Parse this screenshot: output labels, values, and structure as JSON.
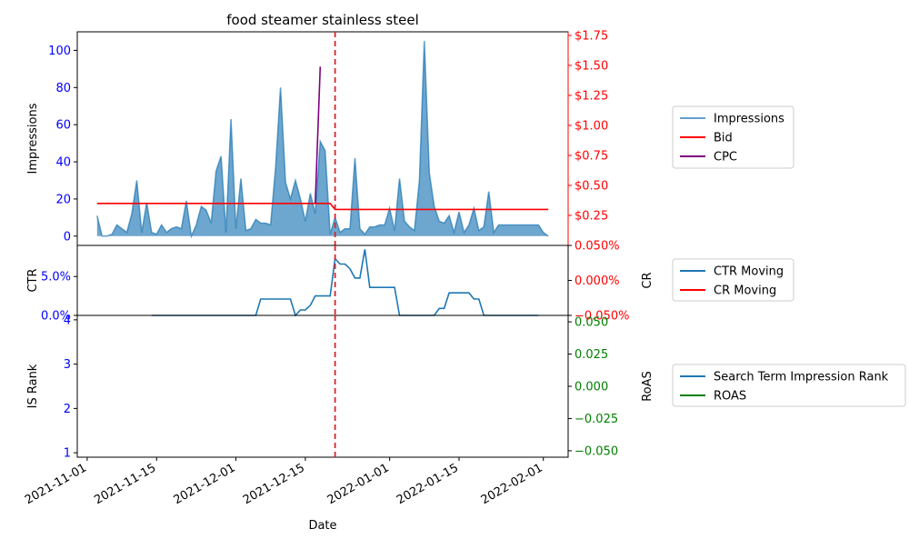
{
  "chart_data": {
    "type": "line",
    "title": "food steamer stainless steel",
    "x_axis": {
      "label": "Date",
      "range": [
        "2021-10-30",
        "2022-02-06"
      ],
      "ticks": [
        "2021-11-01",
        "2021-11-15",
        "2021-12-01",
        "2021-12-15",
        "2022-01-01",
        "2022-01-15",
        "2022-02-01"
      ]
    },
    "event_line": {
      "date": "2021-12-21",
      "color": "#d62728"
    },
    "panels": [
      {
        "id": "top",
        "left_axis": {
          "label": "Impressions",
          "range": [
            -5,
            110
          ],
          "ticks": [
            0,
            20,
            40,
            60,
            80,
            100
          ],
          "tick_labels": [
            "0",
            "20",
            "40",
            "60",
            "80",
            "100"
          ],
          "tick_color": "#0000ff"
        },
        "right_axis": {
          "label": "",
          "range": [
            0,
            1.78
          ],
          "ticks": [
            0.25,
            0.5,
            0.75,
            1.0,
            1.25,
            1.5,
            1.75
          ],
          "tick_labels": [
            "$0.25",
            "$0.50",
            "$0.75",
            "$1.00",
            "$1.25",
            "$1.50",
            "$1.75"
          ],
          "tick_color": "#ff0000",
          "spine_color": "#ff0000"
        },
        "series": [
          {
            "name": "Impressions",
            "kind": "area",
            "axis": "left",
            "color": "#1f77b4",
            "x": [
              "2021-11-03",
              "2021-11-04",
              "2021-11-05",
              "2021-11-06",
              "2021-11-07",
              "2021-11-08",
              "2021-11-09",
              "2021-11-10",
              "2021-11-11",
              "2021-11-12",
              "2021-11-13",
              "2021-11-14",
              "2021-11-15",
              "2021-11-16",
              "2021-11-17",
              "2021-11-18",
              "2021-11-19",
              "2021-11-20",
              "2021-11-21",
              "2021-11-22",
              "2021-11-23",
              "2021-11-24",
              "2021-11-25",
              "2021-11-26",
              "2021-11-27",
              "2021-11-28",
              "2021-11-29",
              "2021-11-30",
              "2021-12-01",
              "2021-12-02",
              "2021-12-03",
              "2021-12-04",
              "2021-12-05",
              "2021-12-06",
              "2021-12-07",
              "2021-12-08",
              "2021-12-09",
              "2021-12-10",
              "2021-12-11",
              "2021-12-12",
              "2021-12-13",
              "2021-12-14",
              "2021-12-15",
              "2021-12-16",
              "2021-12-17",
              "2021-12-18",
              "2021-12-19",
              "2021-12-20",
              "2021-12-21",
              "2021-12-22",
              "2021-12-23",
              "2021-12-24",
              "2021-12-25",
              "2021-12-26",
              "2021-12-27",
              "2021-12-28",
              "2021-12-29",
              "2021-12-30",
              "2021-12-31",
              "2022-01-01",
              "2022-01-02",
              "2022-01-03",
              "2022-01-04",
              "2022-01-05",
              "2022-01-06",
              "2022-01-07",
              "2022-01-08",
              "2022-01-09",
              "2022-01-10",
              "2022-01-11",
              "2022-01-12",
              "2022-01-13",
              "2022-01-14",
              "2022-01-15",
              "2022-01-16",
              "2022-01-17",
              "2022-01-18",
              "2022-01-19",
              "2022-01-20",
              "2022-01-21",
              "2022-01-22",
              "2022-01-23",
              "2022-01-24",
              "2022-01-25",
              "2022-01-26",
              "2022-01-27",
              "2022-01-28",
              "2022-01-29",
              "2022-01-30",
              "2022-01-31",
              "2022-02-01",
              "2022-02-02"
            ],
            "values": [
              11,
              0,
              0,
              1,
              6,
              4,
              2,
              12,
              30,
              2,
              18,
              2,
              1,
              6,
              2,
              4,
              5,
              4,
              19,
              0,
              6,
              16,
              14,
              7,
              35,
              43,
              2,
              63,
              4,
              31,
              3,
              4,
              9,
              7,
              7,
              6,
              37,
              80,
              29,
              20,
              30,
              20,
              8,
              23,
              12,
              51,
              46,
              1,
              10,
              2,
              4,
              4,
              42,
              4,
              1,
              5,
              5,
              6,
              6,
              15,
              3,
              31,
              8,
              5,
              3,
              30,
              105,
              34,
              16,
              8,
              7,
              11,
              2,
              13,
              2,
              6,
              15,
              3,
              5,
              24,
              2,
              6,
              6,
              6,
              6,
              6,
              6,
              6,
              6,
              6,
              2,
              0
            ]
          },
          {
            "name": "Bid",
            "kind": "line",
            "axis": "right",
            "color": "#ff0000",
            "x": [
              "2021-11-03",
              "2021-12-20",
              "2021-12-21",
              "2022-02-02"
            ],
            "values": [
              0.35,
              0.35,
              0.3,
              0.3
            ]
          },
          {
            "name": "CPC",
            "kind": "line",
            "axis": "right",
            "color": "#800080",
            "x": [
              "2021-12-17",
              "2021-12-18"
            ],
            "values": [
              0.35,
              1.49
            ]
          }
        ],
        "legend": {
          "placement": "right"
        }
      },
      {
        "id": "middle",
        "left_axis": {
          "label": "CTR",
          "range": [
            0,
            0.09
          ],
          "ticks": [
            0,
            0.05
          ],
          "tick_labels": [
            "0.0%",
            "5.0%"
          ],
          "tick_color": "#0000ff"
        },
        "right_axis": {
          "label": "CR",
          "range": [
            -0.05,
            0.05
          ],
          "ticks": [
            -0.05,
            0.0,
            0.05
          ],
          "tick_labels": [
            "−0.050%",
            "0.000%",
            "0.050%"
          ],
          "tick_color": "#ff0000"
        },
        "series": [
          {
            "name": "CTR Moving",
            "kind": "line",
            "axis": "left",
            "color": "#1f77b4",
            "x": [
              "2021-11-14",
              "2021-11-22",
              "2021-12-02",
              "2021-12-05",
              "2021-12-06",
              "2021-12-12",
              "2021-12-13",
              "2021-12-14",
              "2021-12-15",
              "2021-12-16",
              "2021-12-17",
              "2021-12-18",
              "2021-12-19",
              "2021-12-20",
              "2021-12-21",
              "2021-12-22",
              "2021-12-23",
              "2021-12-24",
              "2021-12-25",
              "2021-12-26",
              "2021-12-27",
              "2021-12-28",
              "2021-12-29",
              "2021-12-30",
              "2022-01-01",
              "2022-01-02",
              "2022-01-03",
              "2022-01-04",
              "2022-01-05",
              "2022-01-06",
              "2022-01-07",
              "2022-01-08",
              "2022-01-09",
              "2022-01-10",
              "2022-01-11",
              "2022-01-12",
              "2022-01-13",
              "2022-01-14",
              "2022-01-15",
              "2022-01-16",
              "2022-01-17",
              "2022-01-18",
              "2022-01-19",
              "2022-01-20",
              "2022-01-21",
              "2022-01-31"
            ],
            "values": [
              0,
              0,
              0,
              0,
              0.021,
              0.021,
              0,
              0.007,
              0.007,
              0.013,
              0.025,
              0.025,
              0.025,
              0.025,
              0.073,
              0.066,
              0.066,
              0.06,
              0.048,
              0.048,
              0.085,
              0.036,
              0.036,
              0.036,
              0.036,
              0.036,
              0,
              0,
              0,
              0,
              0,
              0,
              0,
              0,
              0.009,
              0.009,
              0.029,
              0.029,
              0.029,
              0.029,
              0.029,
              0.021,
              0.021,
              0,
              0,
              0
            ]
          },
          {
            "name": "CR Moving",
            "kind": "line",
            "axis": "right",
            "color": "#ff0000",
            "x": [],
            "values": []
          }
        ],
        "legend": {
          "placement": "right"
        }
      },
      {
        "id": "bottom",
        "left_axis": {
          "label": "IS Rank",
          "range": [
            0.9,
            4.1
          ],
          "ticks": [
            1,
            2,
            3,
            4
          ],
          "tick_labels": [
            "1",
            "2",
            "3",
            "4"
          ],
          "tick_color": "#0000ff"
        },
        "right_axis": {
          "label": "RoAS",
          "range": [
            -0.055,
            0.055
          ],
          "ticks": [
            -0.05,
            -0.025,
            0.0,
            0.025,
            0.05
          ],
          "tick_labels": [
            "−0.050",
            "−0.025",
            "0.000",
            "0.025",
            "0.050"
          ],
          "tick_color": "#008000"
        },
        "series": [
          {
            "name": "Search Term Impression Rank",
            "kind": "line",
            "axis": "left",
            "color": "#1f77b4",
            "x": [],
            "values": []
          },
          {
            "name": "ROAS",
            "kind": "line",
            "axis": "right",
            "color": "#008000",
            "x": [],
            "values": []
          }
        ],
        "legend": {
          "placement": "right"
        }
      }
    ]
  }
}
